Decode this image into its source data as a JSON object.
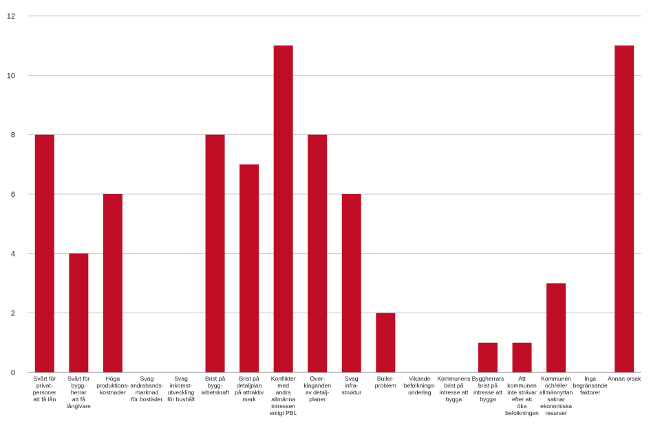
{
  "chart_data": {
    "type": "bar",
    "title": "",
    "xlabel": "",
    "ylabel": "",
    "ylim": [
      0,
      12
    ],
    "yticks": [
      0,
      2,
      4,
      6,
      8,
      10,
      12
    ],
    "grid": true,
    "legend": "none",
    "bar_color": "#c00d26",
    "categories": [
      "Svårt för\nprivat-\npersoner\natt få lån",
      "Svårt för\nbygg-\nherrar\natt få\nlångivare",
      "Höga\nproduktions-\nkostnader",
      "Svag\nandrahands-\nmarknad\nför bostäder",
      "Svag\ninkomst-\nutveckling\nför hushåll",
      "Brist på\nbygg-\narbetskraft",
      "Brist på\ndetaljplan\npå attraktiv\nmark",
      "Konflikter\nmed\nandra\nallmänna\nintressen\nenligt PBL",
      "Över-\nklaganden\nav detalj-\nplaner",
      "Svag\ninfra-\nstruktur",
      "Buller-\nproblem",
      "Vikande\nbefolknings-\nunderlag",
      "Kommunens\nbrist på\nintresse att\nbygga",
      "Byggherrars\nbrist på\nintresse att\nbygga",
      "Att\nkommunen\ninte strävar\nefter att\nöka\nbefolkningen",
      "Kommunen\noch/eller\nallmännyttan\nsaknar\nekonomiska\nresurser",
      "Inga\nbegränsande\nfaktorer",
      "Annan orsak"
    ],
    "values": [
      8,
      4,
      6,
      0,
      0,
      8,
      7,
      11,
      8,
      6,
      2,
      0,
      0,
      1,
      1,
      3,
      0,
      11
    ]
  }
}
